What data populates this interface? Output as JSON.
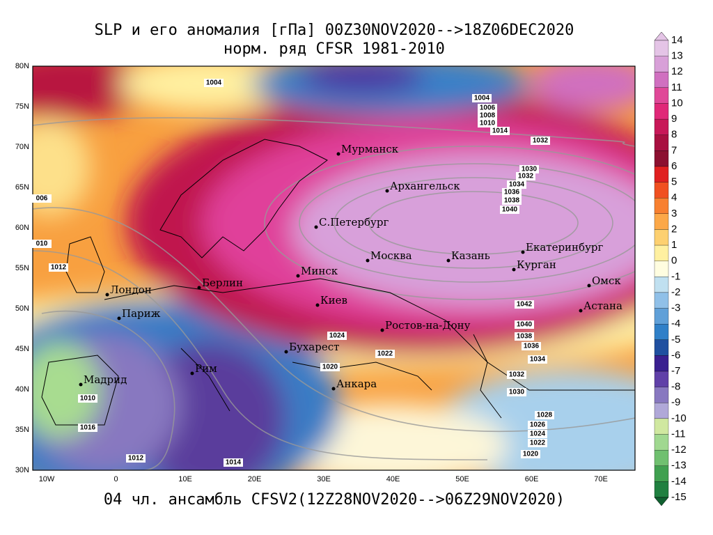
{
  "header": {
    "line1": "SLP и его аномалия [гПа] 00Z30NOV2020-->18Z06DEC2020",
    "line2": "норм. ряд CFSR 1981-2010"
  },
  "footer": "04 чл. ансамбль CFSV2(12Z28NOV2020-->06Z29NOV2020)",
  "lat_labels": [
    "80N",
    "75N",
    "70N",
    "65N",
    "60N",
    "55N",
    "50N",
    "45N",
    "40N",
    "35N",
    "30N"
  ],
  "lon_labels": [
    "10W",
    "0",
    "10E",
    "20E",
    "30E",
    "40E",
    "50E",
    "60E",
    "70E"
  ],
  "colorbar": {
    "ticks": [
      14,
      13,
      12,
      11,
      10,
      9,
      8,
      7,
      6,
      5,
      4,
      3,
      2,
      1,
      0,
      -1,
      -2,
      -3,
      -4,
      -5,
      -6,
      -7,
      -8,
      -9,
      -10,
      -11,
      -12,
      -13,
      -14,
      -15
    ]
  },
  "cities": [
    "Мурманск",
    "Архангельск",
    "С.Петербург",
    "Москва",
    "Казань",
    "Екатеринбург",
    "Курган",
    "Омск",
    "Астана",
    "Минск",
    "Берлин",
    "Лондон",
    "Париж",
    "Киев",
    "Ростов-на-Дону",
    "Бухарест",
    "Рим",
    "Мадрид",
    "Анкара"
  ],
  "isobar_labels": [
    "1004",
    "1004",
    "1006",
    "1008",
    "1010",
    "1014",
    "1032",
    "1030",
    "1032",
    "1034",
    "1036",
    "1038",
    "1040",
    "006",
    "010",
    "1012",
    "1042",
    "1040",
    "1038",
    "1036",
    "1034",
    "1032",
    "1030",
    "1028",
    "1026",
    "1024",
    "1022",
    "1020",
    "1024",
    "1022",
    "1020",
    "1010",
    "1016",
    "1012",
    "1014"
  ]
}
